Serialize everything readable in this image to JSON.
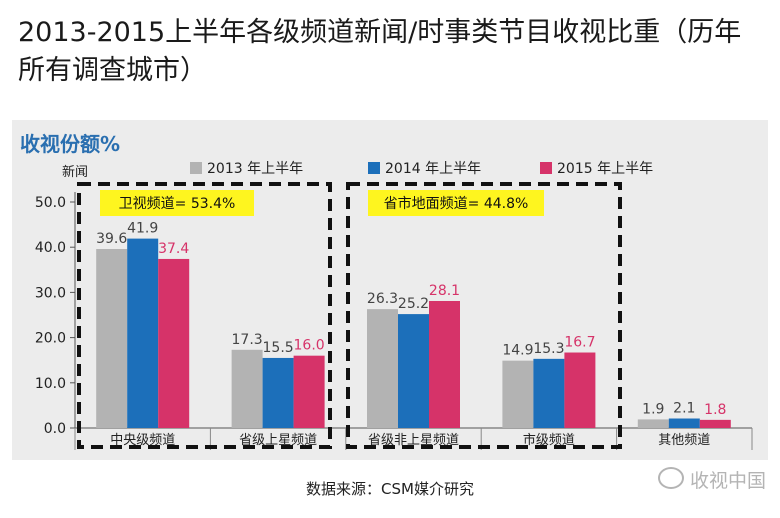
{
  "title": "2013-2015上半年各级频道新闻/时事类节目收视比重（历年所有调查城市）",
  "panel_title": "收视份额%",
  "source": "数据来源：CSM媒介研究",
  "watermark": "收视中国",
  "colors": {
    "s2013": "#b3b3b3",
    "s2014": "#1c6fba",
    "s2015": "#d63369",
    "highlight": "#fef51f"
  },
  "chart_data": {
    "type": "bar",
    "title": "收视份额%",
    "ylabel": "新闻",
    "xlabel": "",
    "ylim": [
      0,
      50
    ],
    "yticks": [
      "0.0",
      "10.0",
      "20.0",
      "30.0",
      "40.0",
      "50.0"
    ],
    "categories": [
      "中央级频道",
      "省级上星频道",
      "省级非上星频道",
      "市级频道",
      "其他频道"
    ],
    "series": [
      {
        "name": "2013 年上半年",
        "values": [
          39.6,
          17.3,
          26.3,
          14.9,
          1.9
        ]
      },
      {
        "name": "2014 年上半年",
        "values": [
          41.9,
          15.5,
          25.2,
          15.3,
          2.1
        ]
      },
      {
        "name": "2015 年上半年",
        "values": [
          37.4,
          16.0,
          28.1,
          16.7,
          1.8
        ]
      }
    ],
    "labels": [
      [
        "39.6",
        "17.3",
        "26.3",
        "14.9",
        "1.9"
      ],
      [
        "41.9",
        "15.5",
        "25.2",
        "15.3",
        "2.1"
      ],
      [
        "37.4",
        "16.0",
        "28.1",
        "16.7",
        "1.8"
      ]
    ],
    "annotations": [
      {
        "text": "卫视频道= 53.4%",
        "groups": [
          0,
          1
        ]
      },
      {
        "text": "省市地面频道= 44.8%",
        "groups": [
          2,
          3
        ]
      }
    ],
    "legend": "top"
  }
}
